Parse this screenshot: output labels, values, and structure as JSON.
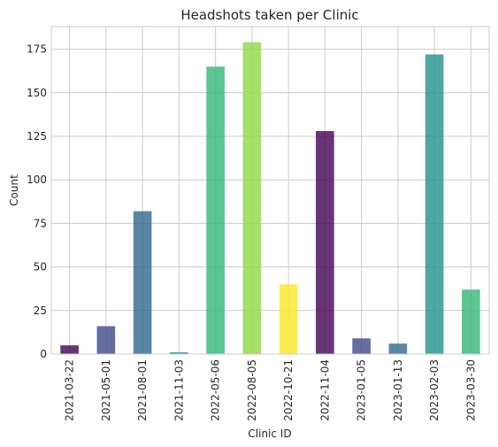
{
  "chart_data": {
    "type": "bar",
    "title": "Headshots taken per Clinic",
    "xlabel": "Clinic ID",
    "ylabel": "Count",
    "categories": [
      "2021-03-22",
      "2021-05-01",
      "2021-08-01",
      "2021-11-03",
      "2022-05-06",
      "2022-08-05",
      "2022-10-21",
      "2022-11-04",
      "2023-01-05",
      "2023-01-13",
      "2023-02-03",
      "2023-03-30"
    ],
    "values": [
      5,
      16,
      82,
      1,
      165,
      179,
      40,
      128,
      9,
      6,
      172,
      37
    ],
    "colors": [
      "#440154",
      "#3e4989",
      "#31688e",
      "#26828e",
      "#35b779",
      "#90d743",
      "#fde725",
      "#440154",
      "#3e4989",
      "#31688e",
      "#21918c",
      "#35b779"
    ],
    "bar_opacity": 0.8,
    "yticks": [
      0,
      25,
      50,
      75,
      100,
      125,
      150,
      175
    ],
    "ylim": [
      0,
      188
    ],
    "grid": true,
    "legend": false
  }
}
